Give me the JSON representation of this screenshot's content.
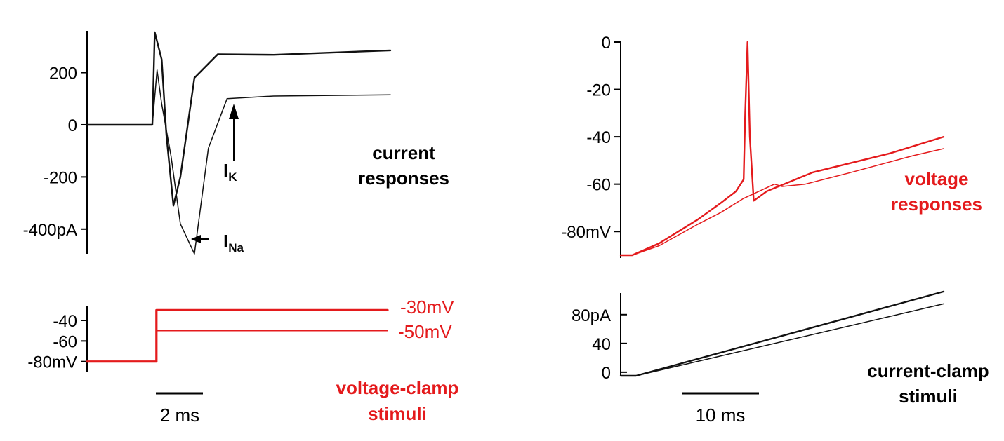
{
  "colors": {
    "black": "#111111",
    "red": "#e41a1c"
  },
  "chart_data": [
    {
      "type": "line",
      "panel": "voltage-clamp current responses",
      "ylabel_units": "pA",
      "ylim": [
        -500,
        360
      ],
      "y_ticks": [
        {
          "value": 200,
          "label": "200"
        },
        {
          "value": 0,
          "label": "0"
        },
        {
          "value": -200,
          "label": "-200"
        },
        {
          "value": -400,
          "label": "-400pA"
        }
      ],
      "series": [
        {
          "name": "response to -30mV step",
          "x_ms": [
            0,
            1.4,
            1.45,
            1.6,
            1.7,
            1.85,
            2.0,
            2.3,
            2.8,
            4,
            6.5
          ],
          "values": [
            0,
            0,
            355,
            250,
            -40,
            -310,
            -200,
            180,
            270,
            268,
            285
          ]
        },
        {
          "name": "response to -50mV step",
          "x_ms": [
            0,
            1.4,
            1.5,
            1.6,
            1.8,
            2.0,
            2.3,
            2.6,
            3.0,
            4,
            6.5
          ],
          "values": [
            0,
            0,
            210,
            80,
            -120,
            -380,
            -495,
            -90,
            100,
            110,
            115
          ]
        }
      ],
      "annotations": [
        {
          "label_main": "I",
          "label_sub": "K",
          "type": "arrow-up"
        },
        {
          "label_main": "I",
          "label_sub": "Na",
          "type": "arrow-left"
        },
        {
          "label_line1": "current",
          "label_line2": "responses"
        }
      ]
    },
    {
      "type": "line",
      "panel": "voltage-clamp stimuli",
      "ylabel_units": "mV",
      "ylim": [
        -85,
        -25
      ],
      "y_ticks": [
        {
          "value": -40,
          "label": "-40"
        },
        {
          "value": -60,
          "label": "-60"
        },
        {
          "value": -80,
          "label": "-80mV"
        }
      ],
      "series": [
        {
          "name": "-30mV",
          "label": "-30mV",
          "x_ms": [
            0,
            1.5,
            1.5,
            6.5
          ],
          "values": [
            -80,
            -80,
            -30,
            -30
          ]
        },
        {
          "name": "-50mV",
          "label": "-50mV",
          "x_ms": [
            0,
            1.5,
            1.5,
            6.5
          ],
          "values": [
            -80,
            -80,
            -50,
            -50
          ]
        }
      ],
      "scale_bar": {
        "length_ms": 2,
        "label": "2 ms"
      },
      "caption": {
        "line1": "voltage-clamp",
        "line2": "stimuli"
      }
    },
    {
      "type": "line",
      "panel": "current-clamp voltage responses",
      "ylabel_units": "mV",
      "ylim": [
        -90,
        0
      ],
      "y_ticks": [
        {
          "value": 0,
          "label": "0"
        },
        {
          "value": -20,
          "label": "-20"
        },
        {
          "value": -40,
          "label": "-40"
        },
        {
          "value": -60,
          "label": "-60"
        },
        {
          "value": -80,
          "label": "-80mV"
        }
      ],
      "series": [
        {
          "name": "spiking trace",
          "x_ms": [
            0,
            1.5,
            5,
            10,
            13,
            15,
            16,
            16.2,
            16.5,
            16.8,
            17.3,
            19,
            25,
            35,
            42
          ],
          "values": [
            -90,
            -90,
            -85,
            -75,
            -68,
            -63,
            -58,
            -30,
            0,
            -40,
            -67,
            -63,
            -55,
            -47,
            -40
          ]
        },
        {
          "name": "subthreshold trace",
          "x_ms": [
            0,
            1.5,
            5,
            10,
            13,
            16,
            18,
            20,
            21,
            24,
            30,
            38,
            42
          ],
          "values": [
            -90,
            -90,
            -86,
            -77,
            -72,
            -66,
            -63,
            -60,
            -61,
            -60,
            -55,
            -48,
            -45
          ]
        }
      ],
      "caption": {
        "line1": "voltage",
        "line2": "responses"
      }
    },
    {
      "type": "line",
      "panel": "current-clamp stimuli",
      "ylabel_units": "pA",
      "ylim": [
        -5,
        110
      ],
      "y_ticks": [
        {
          "value": 80,
          "label": "80pA"
        },
        {
          "value": 40,
          "label": "40"
        },
        {
          "value": 0,
          "label": "0"
        }
      ],
      "series": [
        {
          "name": "steep ramp",
          "x_ms": [
            0,
            2,
            42
          ],
          "values": [
            -5,
            -5,
            112
          ]
        },
        {
          "name": "shallow ramp",
          "x_ms": [
            0,
            2,
            42
          ],
          "values": [
            -5,
            -5,
            95
          ]
        }
      ],
      "scale_bar": {
        "length_ms": 10,
        "label": "10 ms"
      },
      "caption": {
        "line1": "current-clamp",
        "line2": "stimuli"
      }
    }
  ]
}
